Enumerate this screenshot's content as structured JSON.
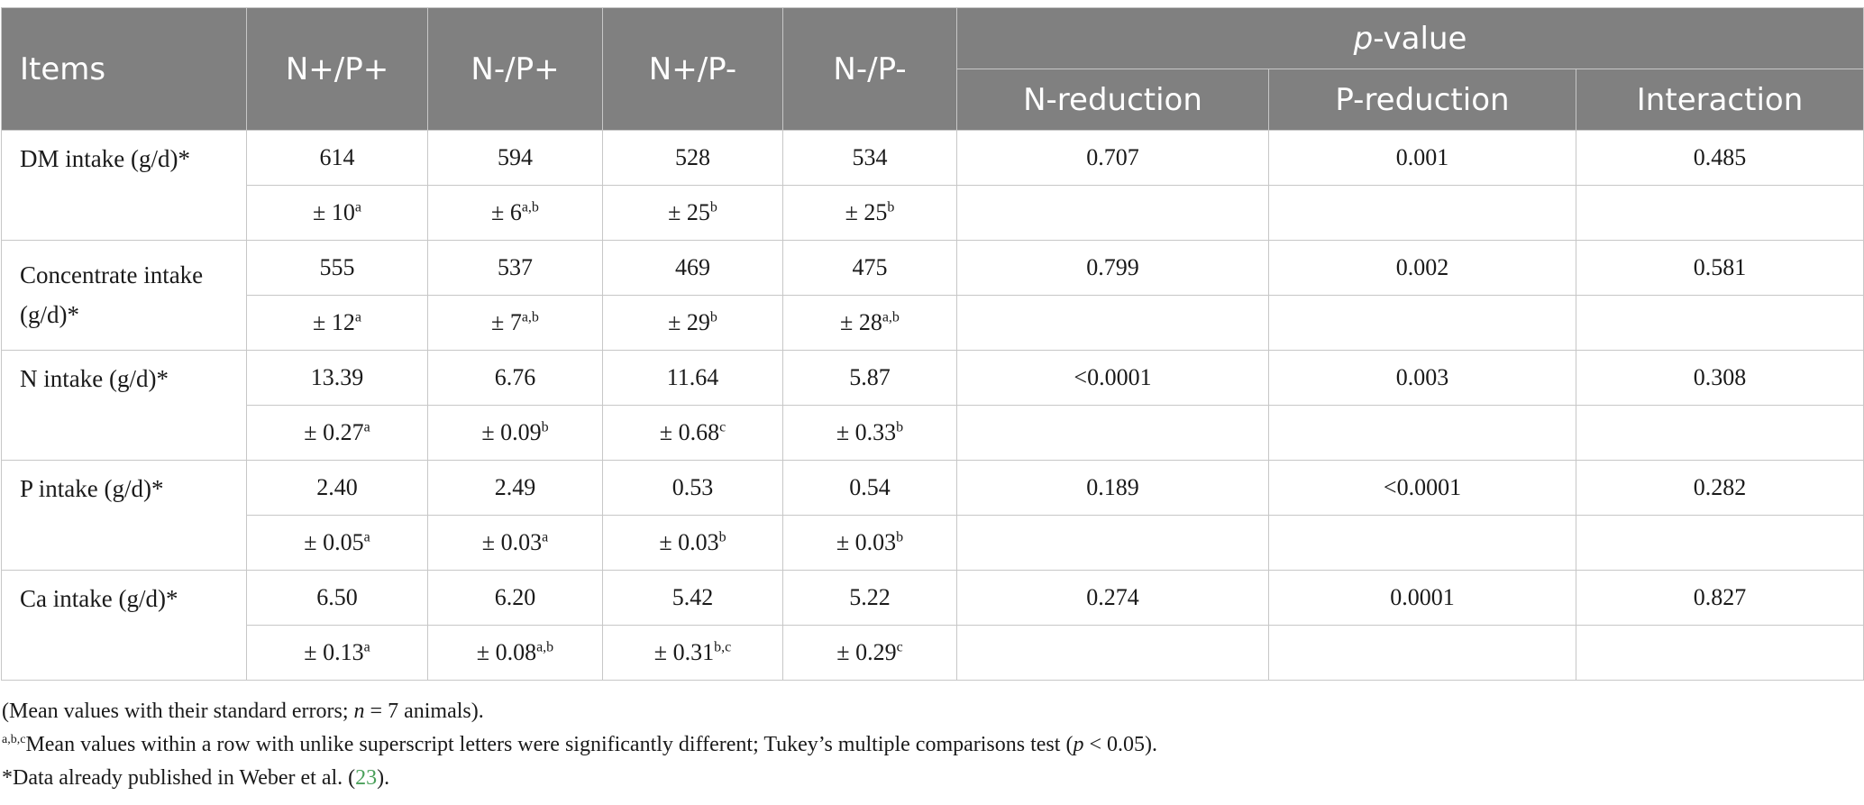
{
  "header": {
    "items": "Items",
    "groups": [
      "N+/P+",
      "N-/P+",
      "N+/P-",
      "N-/P-"
    ],
    "pvalue_italic": "p",
    "pvalue_rest": "-value",
    "pvalue_cols": [
      "N-reduction",
      "P-reduction",
      "Interaction"
    ]
  },
  "rows": [
    {
      "label": "DM intake (g/d)*",
      "means": [
        "614",
        "594",
        "528",
        "534"
      ],
      "sems": [
        {
          "v": "± 10",
          "s": "a"
        },
        {
          "v": "± 6",
          "s": "a,b"
        },
        {
          "v": "± 25",
          "s": "b"
        },
        {
          "v": "± 25",
          "s": "b"
        }
      ],
      "p": [
        "0.707",
        "0.001",
        "0.485"
      ]
    },
    {
      "label_line1": "Concentrate intake",
      "label_line2": "(g/d)*",
      "means": [
        "555",
        "537",
        "469",
        "475"
      ],
      "sems": [
        {
          "v": "± 12",
          "s": "a"
        },
        {
          "v": "± 7",
          "s": "a,b"
        },
        {
          "v": "± 29",
          "s": "b"
        },
        {
          "v": "± 28",
          "s": "a,b"
        }
      ],
      "p": [
        "0.799",
        "0.002",
        "0.581"
      ]
    },
    {
      "label": "N intake (g/d)*",
      "means": [
        "13.39",
        "6.76",
        "11.64",
        "5.87"
      ],
      "sems": [
        {
          "v": "± 0.27",
          "s": "a"
        },
        {
          "v": "± 0.09",
          "s": "b"
        },
        {
          "v": "± 0.68",
          "s": "c"
        },
        {
          "v": "± 0.33",
          "s": "b"
        }
      ],
      "p": [
        "<0.0001",
        "0.003",
        "0.308"
      ]
    },
    {
      "label": "P intake (g/d)*",
      "means": [
        "2.40",
        "2.49",
        "0.53",
        "0.54"
      ],
      "sems": [
        {
          "v": "± 0.05",
          "s": "a"
        },
        {
          "v": "± 0.03",
          "s": "a"
        },
        {
          "v": "± 0.03",
          "s": "b"
        },
        {
          "v": "± 0.03",
          "s": "b"
        }
      ],
      "p": [
        "0.189",
        "<0.0001",
        "0.282"
      ]
    },
    {
      "label": "Ca intake (g/d)*",
      "means": [
        "6.50",
        "6.20",
        "5.42",
        "5.22"
      ],
      "sems": [
        {
          "v": "± 0.13",
          "s": "a"
        },
        {
          "v": "± 0.08",
          "s": "a,b"
        },
        {
          "v": "± 0.31",
          "s": "b,c"
        },
        {
          "v": "± 0.29",
          "s": "c"
        }
      ],
      "p": [
        "0.274",
        "0.0001",
        "0.827"
      ]
    }
  ],
  "notes": {
    "n1_a": "(Mean values with their standard errors; ",
    "n1_n": "n",
    "n1_b": " = 7 animals).",
    "n2_sup": "a,b,c",
    "n2_a": "Mean values within a row with unlike superscript letters were significantly different; Tukey’s multiple comparisons test (",
    "n2_p": "p",
    "n2_b": " < 0.05).",
    "n3_a": "*Data already published in Weber et al. (",
    "n3_ref": "23",
    "n3_b": ")."
  }
}
